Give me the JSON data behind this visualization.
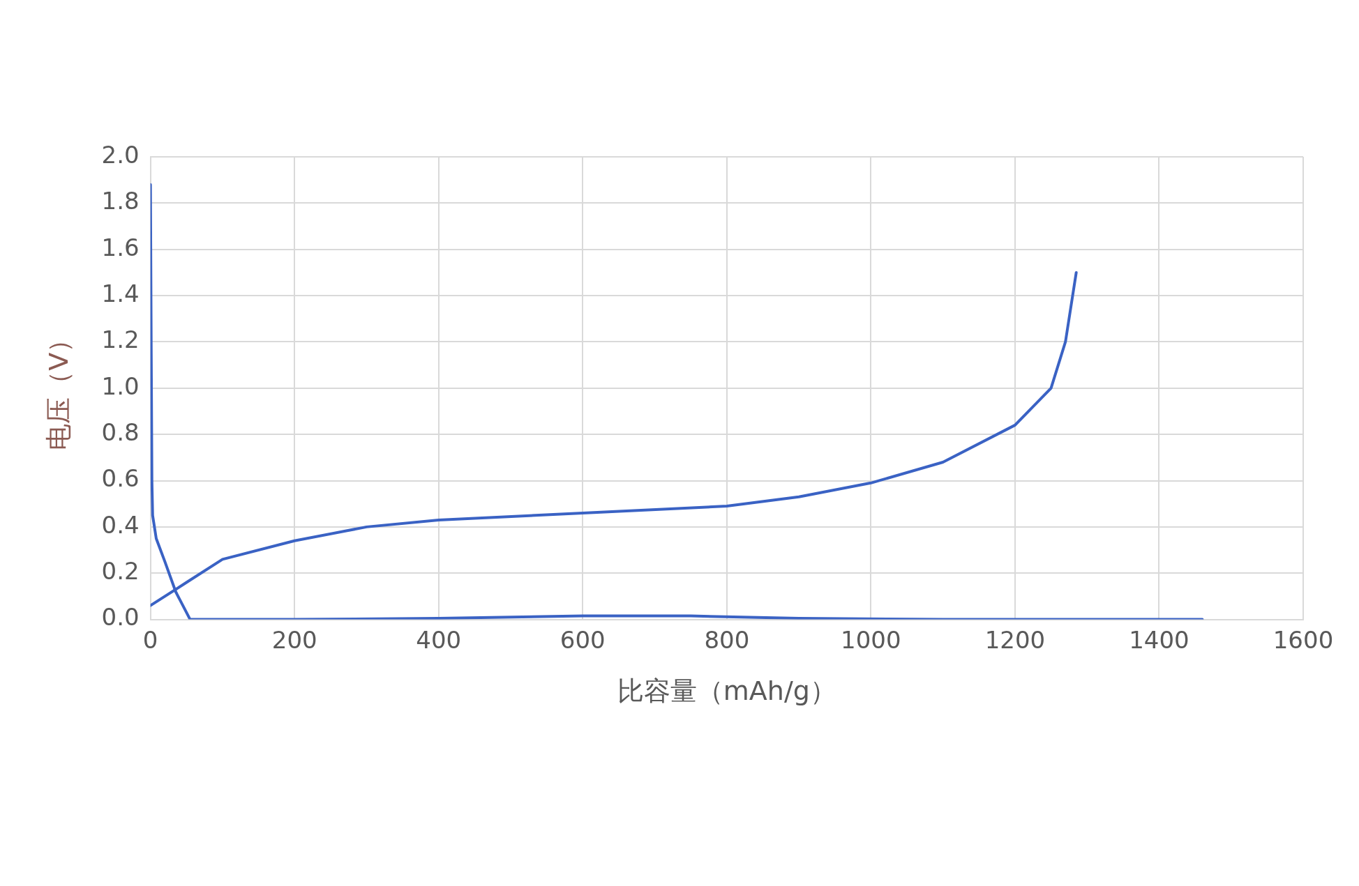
{
  "chart_data": {
    "type": "line",
    "xlabel": "比容量（mAh/g）",
    "ylabel": "电压（V）",
    "xlim": [
      0,
      1600
    ],
    "xticks": [
      0,
      200,
      400,
      600,
      800,
      1000,
      1200,
      1400,
      1600
    ],
    "ylim": [
      0,
      2
    ],
    "yticks": [
      {
        "value": 0,
        "label": "0.0"
      },
      0.2,
      0.4,
      0.6,
      0.8,
      {
        "value": 1,
        "label": "1.0"
      },
      1.2,
      1.4,
      1.6,
      1.8,
      {
        "value": 2,
        "label": "2.0"
      }
    ],
    "grid": true,
    "legend": false,
    "marker": "none",
    "line_style": "solid",
    "series": [
      {
        "color": "#3a62c4",
        "x": [
          0,
          1,
          2,
          3,
          8,
          20,
          35,
          50,
          55,
          200,
          400,
          600,
          750,
          900,
          1100,
          1460
        ],
        "values": [
          1.88,
          1.2,
          0.6,
          0.45,
          0.35,
          0.25,
          0.12,
          0.03,
          0,
          0,
          0.005,
          0.015,
          0.015,
          0.005,
          0,
          0
        ]
      },
      {
        "color": "#3a62c4",
        "x": [
          0,
          50,
          100,
          200,
          300,
          400,
          600,
          800,
          900,
          1000,
          1100,
          1200,
          1250,
          1270,
          1285
        ],
        "values": [
          0.06,
          0.16,
          0.26,
          0.34,
          0.4,
          0.43,
          0.46,
          0.49,
          0.53,
          0.59,
          0.68,
          0.84,
          1.0,
          1.2,
          1.5
        ]
      }
    ]
  }
}
